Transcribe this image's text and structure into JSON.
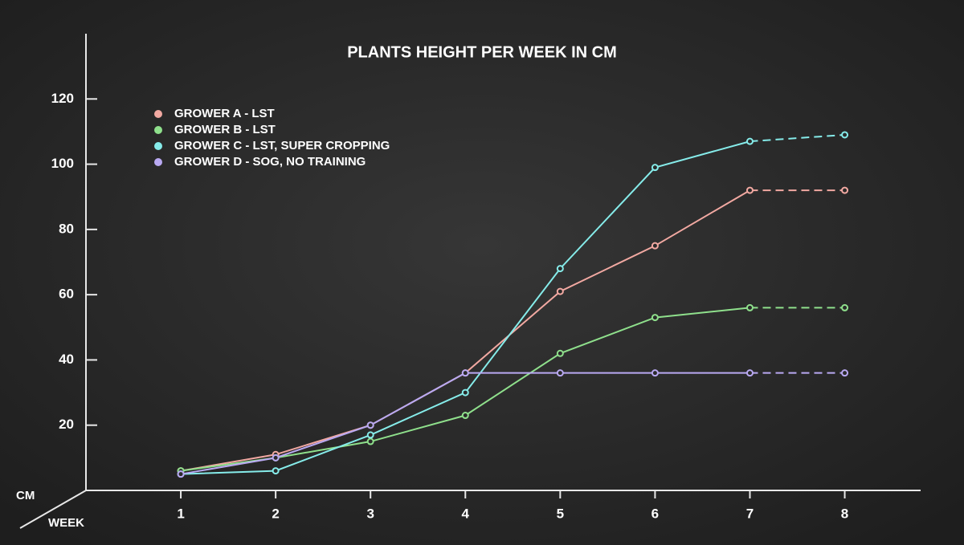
{
  "chart_data": {
    "type": "line",
    "title": "PLANTS HEIGHT PER WEEK IN CM",
    "x_label": "WEEK",
    "y_label": "CM",
    "x": [
      1,
      2,
      3,
      4,
      5,
      6,
      7,
      8
    ],
    "xlim": [
      0,
      8.8
    ],
    "xticks": [
      1,
      2,
      3,
      4,
      5,
      6,
      7,
      8
    ],
    "ylim": [
      0,
      140
    ],
    "yticks": [
      20,
      40,
      60,
      80,
      100,
      120
    ],
    "legend": "top-left",
    "series": [
      {
        "name": "GROWER A - LST",
        "color": "#f2a9a2",
        "values": [
          6,
          11,
          20,
          36,
          61,
          75,
          92,
          92
        ]
      },
      {
        "name": "GROWER B - LST",
        "color": "#8fe08c",
        "values": [
          6,
          10,
          15,
          23,
          42,
          53,
          56,
          56
        ]
      },
      {
        "name": "GROWER C - LST, SUPER CROPPING",
        "color": "#86ecea",
        "values": [
          5,
          6,
          17,
          30,
          68,
          99,
          107,
          109
        ]
      },
      {
        "name": "GROWER D - SOG, NO TRAINING",
        "color": "#b9a9f2",
        "values": [
          5,
          10,
          20,
          36,
          36,
          36,
          36,
          36
        ]
      }
    ]
  }
}
